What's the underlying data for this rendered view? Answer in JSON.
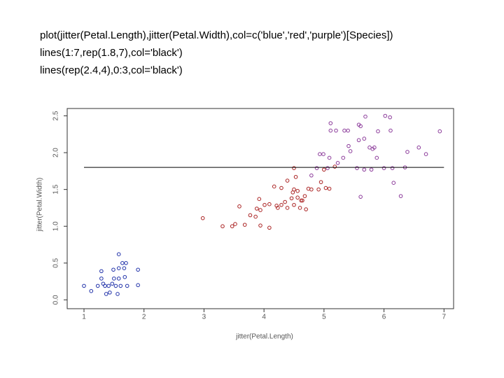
{
  "code": [
    "plot(jitter(Petal.Length),jitter(Petal.Width),col=c('blue','red','purple')[Species])",
    "lines(1:7,rep(1.8,7),col='black')",
    "lines(rep(2.4,4),0:3,col='black')"
  ],
  "chart_data": {
    "type": "scatter",
    "xlabel": "jitter(Petal.Length)",
    "ylabel": "jitter(Petal.Width)",
    "xlim": [
      0.72,
      7.16
    ],
    "ylim": [
      -0.12,
      2.6
    ],
    "xticks": [
      1,
      2,
      3,
      4,
      5,
      6,
      7
    ],
    "yticks": [
      {
        "value": 0,
        "label": "0.0"
      },
      0.5,
      {
        "value": 1,
        "label": "1.0"
      },
      1.5,
      {
        "value": 2,
        "label": "2.0"
      },
      2.5
    ],
    "series": [
      {
        "color": "#2233aa",
        "x": [
          1.0,
          1.12,
          1.23,
          1.29,
          1.29,
          1.32,
          1.35,
          1.37,
          1.41,
          1.43,
          1.47,
          1.49,
          1.5,
          1.53,
          1.56,
          1.58,
          1.58,
          1.61,
          1.64,
          1.67,
          1.7,
          1.68,
          1.72,
          1.9,
          1.9,
          1.58
        ],
        "values": [
          0.19,
          0.12,
          0.19,
          0.39,
          0.29,
          0.22,
          0.19,
          0.08,
          0.19,
          0.1,
          0.22,
          0.41,
          0.29,
          0.19,
          0.08,
          0.29,
          0.43,
          0.19,
          0.5,
          0.43,
          0.5,
          0.31,
          0.19,
          0.41,
          0.2,
          0.62
        ]
      },
      {
        "color": "#aa2222",
        "x": [
          2.98,
          3.31,
          3.47,
          3.52,
          3.68,
          3.77,
          3.86,
          3.94,
          4.09,
          3.59,
          3.92,
          3.88,
          3.94,
          4.01,
          4.09,
          4.21,
          4.23,
          4.29,
          4.35,
          4.39,
          4.46,
          4.5,
          4.56,
          4.6,
          4.62,
          4.7,
          4.74,
          4.68,
          4.79,
          4.17,
          4.29,
          4.39,
          4.48,
          4.5,
          4.56,
          4.53,
          4.64,
          4.91,
          4.95,
          5.03,
          5.09,
          4.5,
          5.0,
          5.18
        ],
        "values": [
          1.11,
          1.0,
          1.0,
          1.03,
          1.02,
          1.15,
          1.13,
          1.01,
          0.98,
          1.27,
          1.37,
          1.24,
          1.22,
          1.29,
          1.3,
          1.28,
          1.25,
          1.29,
          1.33,
          1.25,
          1.38,
          1.29,
          1.39,
          1.25,
          1.35,
          1.23,
          1.51,
          1.41,
          1.5,
          1.54,
          1.52,
          1.62,
          1.46,
          1.5,
          1.48,
          1.67,
          1.35,
          1.5,
          1.6,
          1.52,
          1.51,
          1.79,
          1.77,
          1.81
        ]
      },
      {
        "color": "#8b3a9a",
        "x": [
          5.11,
          5.11,
          5.2,
          5.34,
          5.4,
          5.58,
          5.61,
          5.69,
          5.9,
          6.02,
          6.1,
          6.11,
          5.67,
          5.76,
          5.58,
          5.41,
          5.32,
          5.09,
          4.99,
          4.93,
          4.88,
          4.79,
          5.06,
          5.55,
          5.67,
          5.81,
          5.79,
          5.84,
          5.88,
          6.0,
          6.14,
          6.35,
          6.39,
          6.58,
          6.7,
          6.93,
          5.61,
          6.16,
          6.28,
          5.23,
          5.44
        ],
        "values": [
          2.4,
          2.3,
          2.3,
          2.3,
          2.3,
          2.38,
          2.36,
          2.49,
          2.29,
          2.5,
          2.48,
          2.3,
          2.19,
          2.07,
          2.17,
          2.09,
          1.93,
          1.93,
          1.98,
          1.98,
          1.79,
          1.69,
          1.79,
          1.79,
          1.77,
          2.05,
          1.77,
          2.07,
          1.93,
          1.79,
          1.79,
          1.8,
          2.01,
          2.07,
          1.98,
          2.29,
          1.4,
          1.59,
          1.41,
          1.86,
          2.02
        ]
      }
    ],
    "lines": [
      {
        "color": "#000000",
        "x": [
          1,
          7
        ],
        "y": [
          1.8,
          1.8
        ]
      }
    ]
  }
}
